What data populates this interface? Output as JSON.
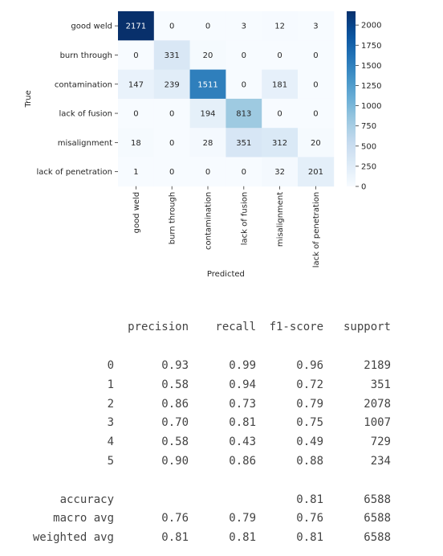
{
  "chart_data": {
    "type": "heatmap",
    "title": "",
    "xlabel": "Predicted",
    "ylabel": "True",
    "x_categories": [
      "good weld",
      "burn through",
      "contamination",
      "lack of fusion",
      "misalignment",
      "lack of penetration"
    ],
    "y_categories": [
      "good weld",
      "burn through",
      "contamination",
      "lack of fusion",
      "misalignment",
      "lack of penetration"
    ],
    "values": [
      [
        2171,
        0,
        0,
        3,
        12,
        3
      ],
      [
        0,
        331,
        20,
        0,
        0,
        0
      ],
      [
        147,
        239,
        1511,
        0,
        181,
        0
      ],
      [
        0,
        0,
        194,
        813,
        0,
        0
      ],
      [
        18,
        0,
        28,
        351,
        312,
        20
      ],
      [
        1,
        0,
        0,
        0,
        32,
        201
      ]
    ],
    "colormap": "Blues",
    "colorbar": {
      "range": [
        0,
        2171
      ],
      "ticks": [
        0,
        250,
        500,
        750,
        1000,
        1250,
        1500,
        1750,
        2000
      ]
    }
  },
  "report": {
    "headers": [
      "precision",
      "recall",
      "f1-score",
      "support"
    ],
    "rows": [
      {
        "label": "0",
        "precision": "0.93",
        "recall": "0.99",
        "f1": "0.96",
        "support": "2189"
      },
      {
        "label": "1",
        "precision": "0.58",
        "recall": "0.94",
        "f1": "0.72",
        "support": "351"
      },
      {
        "label": "2",
        "precision": "0.86",
        "recall": "0.73",
        "f1": "0.79",
        "support": "2078"
      },
      {
        "label": "3",
        "precision": "0.70",
        "recall": "0.81",
        "f1": "0.75",
        "support": "1007"
      },
      {
        "label": "4",
        "precision": "0.58",
        "recall": "0.43",
        "f1": "0.49",
        "support": "729"
      },
      {
        "label": "5",
        "precision": "0.90",
        "recall": "0.86",
        "f1": "0.88",
        "support": "234"
      }
    ],
    "accuracy": {
      "label": "accuracy",
      "f1": "0.81",
      "support": "6588"
    },
    "macro": {
      "label": "macro avg",
      "precision": "0.76",
      "recall": "0.79",
      "f1": "0.76",
      "support": "6588"
    },
    "weighted": {
      "label": "weighted avg",
      "precision": "0.81",
      "recall": "0.81",
      "f1": "0.81",
      "support": "6588"
    }
  }
}
